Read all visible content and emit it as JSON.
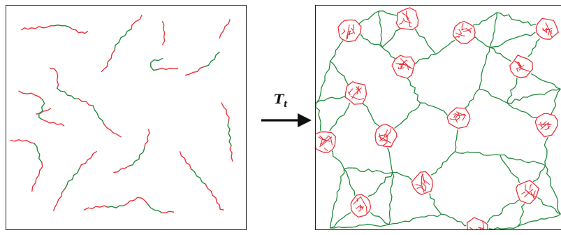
{
  "diagram": {
    "arrow_label_main": "T",
    "arrow_label_sub": "t",
    "colors": {
      "segment_red": "#e8323a",
      "segment_green": "#1f8a3a",
      "frame": "#222222",
      "arrow": "#111111"
    }
  }
}
